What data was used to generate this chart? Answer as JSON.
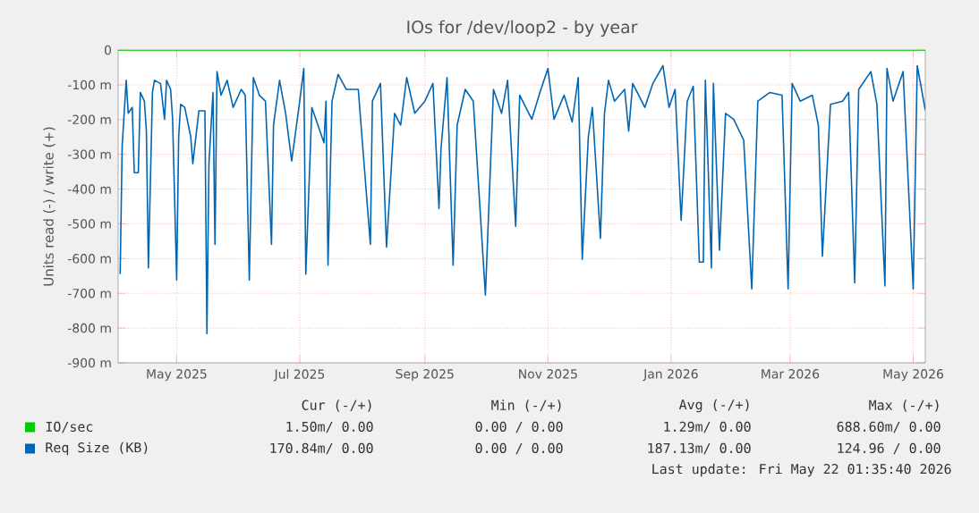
{
  "chart_data": {
    "type": "line",
    "title": "IOs for /dev/loop2 - by year",
    "ylabel": "Units read (-) / write (+)",
    "xlim": [
      "2025-04-17",
      "2026-05-22"
    ],
    "xticks": [
      {
        "value": "2025-05-16",
        "label": "May 2025"
      },
      {
        "value": "2025-07-16",
        "label": "Jul 2025"
      },
      {
        "value": "2025-09-16",
        "label": "Sep 2025"
      },
      {
        "value": "2025-11-16",
        "label": "Nov 2025"
      },
      {
        "value": "2026-01-16",
        "label": "Jan 2026"
      },
      {
        "value": "2026-03-16",
        "label": "Mar 2026"
      },
      {
        "value": "2026-05-16",
        "label": "May 2026"
      }
    ],
    "ylim": [
      -900,
      0
    ],
    "yticks": [
      {
        "value": -900,
        "label": "-900 m"
      },
      {
        "value": -800,
        "label": "-800 m"
      },
      {
        "value": -700,
        "label": "-700 m"
      },
      {
        "value": -600,
        "label": "-600 m"
      },
      {
        "value": -500,
        "label": "-500 m"
      },
      {
        "value": -400,
        "label": "-400 m"
      },
      {
        "value": -300,
        "label": "-300 m"
      },
      {
        "value": -200,
        "label": "-200 m"
      },
      {
        "value": -100,
        "label": "-100 m"
      },
      0
    ],
    "grid": true,
    "legend": "bottom",
    "marker": "none",
    "line_style": "solid",
    "series": [
      {
        "name": "IO/sec",
        "color": "#00cc00",
        "x": [
          "2025-04-17",
          "2026-05-22"
        ],
        "values": [
          0,
          0
        ]
      },
      {
        "name": "Req Size (KB)",
        "color": "#0066b3",
        "x": [
          "2025-04-18",
          "2025-04-19",
          "2025-04-21",
          "2025-04-22",
          "2025-04-24",
          "2025-04-25",
          "2025-04-27",
          "2025-04-28",
          "2025-04-30",
          "2025-05-01",
          "2025-05-02",
          "2025-05-04",
          "2025-05-05",
          "2025-05-08",
          "2025-05-10",
          "2025-05-11",
          "2025-05-13",
          "2025-05-14",
          "2025-05-16",
          "2025-05-17",
          "2025-05-18",
          "2025-05-20",
          "2025-05-23",
          "2025-05-24",
          "2025-05-27",
          "2025-05-30",
          "2025-05-31",
          "2025-06-01",
          "2025-06-03",
          "2025-06-04",
          "2025-06-05",
          "2025-06-07",
          "2025-06-10",
          "2025-06-13",
          "2025-06-17",
          "2025-06-19",
          "2025-06-21",
          "2025-06-23",
          "2025-06-26",
          "2025-06-29",
          "2025-07-02",
          "2025-07-03",
          "2025-07-06",
          "2025-07-09",
          "2025-07-12",
          "2025-07-16",
          "2025-07-18",
          "2025-07-19",
          "2025-07-22",
          "2025-07-25",
          "2025-07-28",
          "2025-07-29",
          "2025-07-30",
          "2025-08-01",
          "2025-08-04",
          "2025-08-08",
          "2025-08-14",
          "2025-08-20",
          "2025-08-21",
          "2025-08-25",
          "2025-08-28",
          "2025-09-01",
          "2025-09-04",
          "2025-09-07",
          "2025-09-11",
          "2025-09-16",
          "2025-09-20",
          "2025-09-23",
          "2025-09-24",
          "2025-09-27",
          "2025-09-30",
          "2025-10-02",
          "2025-10-06",
          "2025-10-10",
          "2025-10-16",
          "2025-10-20",
          "2025-10-24",
          "2025-10-27",
          "2025-10-31",
          "2025-11-02",
          "2025-11-08",
          "2025-11-12",
          "2025-11-16",
          "2025-11-19",
          "2025-11-24",
          "2025-11-28",
          "2025-12-01",
          "2025-12-03",
          "2025-12-06",
          "2025-12-08",
          "2025-12-12",
          "2025-12-14",
          "2025-12-16",
          "2025-12-19",
          "2025-12-24",
          "2025-12-26",
          "2025-12-28",
          "2025-12-31",
          "2026-01-03",
          "2026-01-07",
          "2026-01-12",
          "2026-01-15",
          "2026-01-18",
          "2026-01-21",
          "2026-01-24",
          "2026-01-27",
          "2026-01-30",
          "2026-02-01",
          "2026-02-02",
          "2026-02-05",
          "2026-02-06",
          "2026-02-09",
          "2026-02-12",
          "2026-02-16",
          "2026-02-21",
          "2026-02-25",
          "2026-02-28",
          "2026-03-06",
          "2026-03-12",
          "2026-03-15",
          "2026-03-17",
          "2026-03-21",
          "2026-03-27",
          "2026-03-30",
          "2026-04-01",
          "2026-04-05",
          "2026-04-11",
          "2026-04-14",
          "2026-04-17",
          "2026-04-19",
          "2026-04-25",
          "2026-04-28",
          "2026-05-02",
          "2026-05-03",
          "2026-05-06",
          "2026-05-11",
          "2026-05-16",
          "2026-05-18",
          "2026-05-22"
        ],
        "values": [
          -645,
          -276,
          -87,
          -182,
          -165,
          -353,
          -353,
          -122,
          -147,
          -233,
          -627,
          -122,
          -87,
          -96,
          -199,
          -87,
          -113,
          -199,
          -662,
          -250,
          -156,
          -165,
          -250,
          -327,
          -175,
          -175,
          -816,
          -327,
          -122,
          -559,
          -62,
          -130,
          -87,
          -165,
          -113,
          -130,
          -662,
          -79,
          -130,
          -147,
          -559,
          -216,
          -87,
          -182,
          -319,
          -147,
          -53,
          -645,
          -165,
          -216,
          -267,
          -147,
          -619,
          -147,
          -70,
          -113,
          -113,
          -559,
          -147,
          -96,
          -567,
          -182,
          -216,
          -79,
          -182,
          -147,
          -96,
          -456,
          -284,
          -79,
          -619,
          -216,
          -113,
          -147,
          -705,
          -113,
          -182,
          -87,
          -507,
          -130,
          -199,
          -122,
          -53,
          -199,
          -130,
          -207,
          -79,
          -602,
          -250,
          -165,
          -542,
          -182,
          -87,
          -147,
          -113,
          -233,
          -96,
          -130,
          -165,
          -96,
          -45,
          -165,
          -113,
          -490,
          -147,
          -104,
          -610,
          -610,
          -87,
          -627,
          -96,
          -576,
          -182,
          -199,
          -259,
          -687,
          -147,
          -122,
          -130,
          -687,
          -96,
          -147,
          -130,
          -216,
          -593,
          -156,
          -147,
          -122,
          -670,
          -113,
          -62,
          -156,
          -679,
          -53,
          -147,
          -62,
          -687,
          -45,
          -173
        ]
      }
    ],
    "annotations": [
      "Cur (-/+)",
      "Min (-/+)",
      "Avg (-/+)",
      "Max (-/+)",
      "1.50m/  0.00",
      "0.00 /  0.00",
      "1.29m/  0.00",
      "688.60m/  0.00",
      "170.84m/  0.00",
      "0.00 /  0.00",
      "187.13m/  0.00",
      "124.96 /  0.00",
      "Last update: Fri May 22 01:35:40 2026"
    ]
  }
}
